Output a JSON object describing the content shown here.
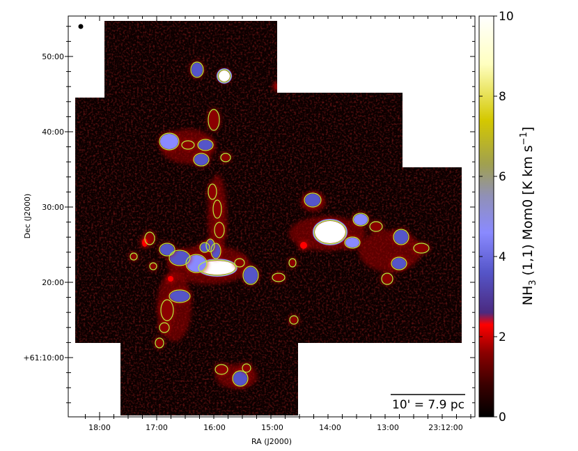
{
  "chart_data": {
    "type": "heatmap",
    "title": "",
    "xlabel": "RA (J2000)",
    "ylabel": "Dec (J2000)",
    "x_tick_labels": [
      "18:00",
      "17:00",
      "16:00",
      "15:00",
      "14:00",
      "13:00",
      "23:12:00"
    ],
    "y_tick_labels": [
      "50:00",
      "40:00",
      "30:00",
      "20:00",
      "+61:10:00"
    ],
    "colorbar": {
      "label_main": "NH",
      "label_sub": "3",
      "label_rest": " (1,1) Mom0 [K km s",
      "label_sup": "−1",
      "label_end": "]",
      "ticks": [
        "0",
        "2",
        "4",
        "6",
        "8",
        "10"
      ],
      "range": [
        0,
        10
      ],
      "colormap": [
        "#000000",
        "#3a0000",
        "#8b0000",
        "#ff0000",
        "#4b2a80",
        "#5555c8",
        "#8a8aff",
        "#9090b8",
        "#a0a050",
        "#d4c800",
        "#ffffc0",
        "#ffffff"
      ]
    },
    "scale_bar": {
      "text": "10' = 7.9 pc"
    },
    "beam_marker": true,
    "contour_color": "#b6f03c",
    "background_color": "#ffffff",
    "map_base_color": "#0c0000"
  }
}
